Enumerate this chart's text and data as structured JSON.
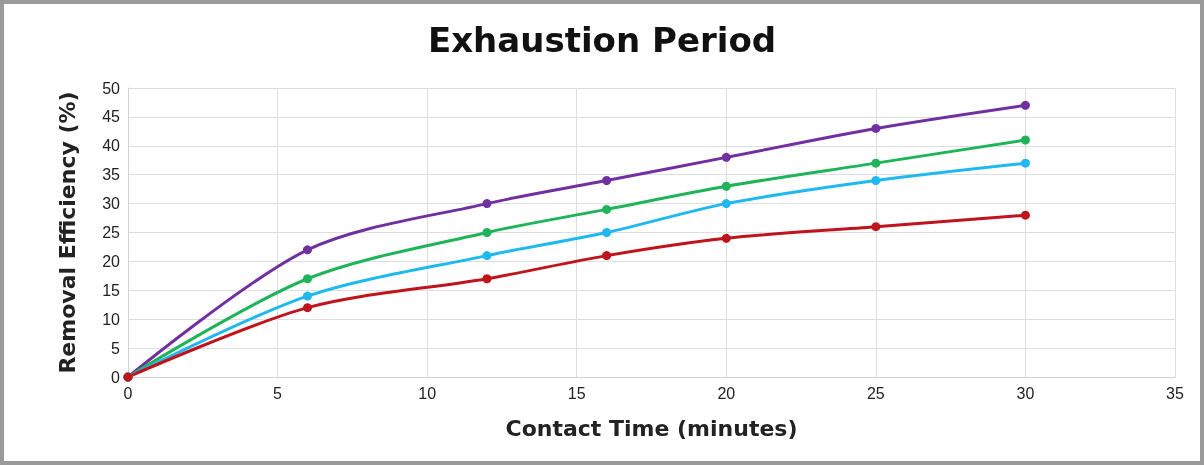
{
  "chart_data": {
    "type": "line",
    "title": "Exhaustion Period",
    "xlabel": "Contact Time (minutes)",
    "ylabel": "Removal Efficiency (%)",
    "x": [
      0,
      6,
      12,
      16,
      20,
      25,
      30
    ],
    "series": [
      {
        "color": "#7030a0",
        "values": [
          0,
          22,
          30,
          34,
          38,
          43,
          47
        ]
      },
      {
        "color": "#1fb35a",
        "values": [
          0,
          17,
          25,
          29,
          33,
          37,
          41
        ]
      },
      {
        "color": "#1fb8ef",
        "values": [
          0,
          14,
          21,
          25,
          30,
          34,
          37
        ]
      },
      {
        "color": "#c0141c",
        "values": [
          0,
          12,
          17,
          21,
          24,
          26,
          28
        ]
      }
    ],
    "xlim": [
      0,
      35
    ],
    "xticks": [
      0,
      5,
      10,
      15,
      20,
      25,
      30,
      35
    ],
    "ylim": [
      0,
      50
    ],
    "yticks": [
      0,
      5,
      10,
      15,
      20,
      25,
      30,
      35,
      40,
      45,
      50
    ],
    "grid": true,
    "marker": "circle",
    "line_style": "solid"
  }
}
